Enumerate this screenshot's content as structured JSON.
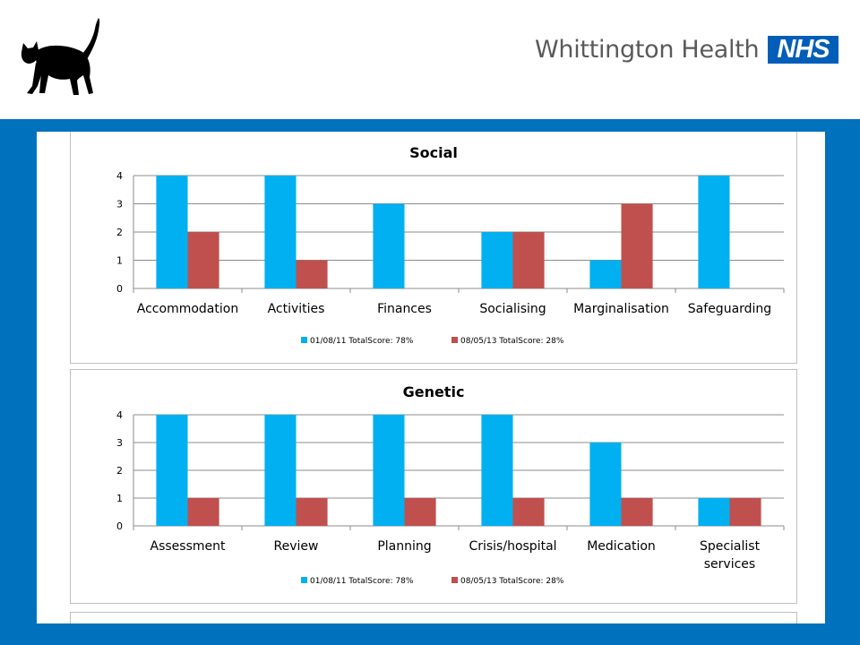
{
  "header": {
    "brand_name": "Whittington Health",
    "nhs_mark": "NHS",
    "logo_icon": "black-cat-icon"
  },
  "colors": {
    "series_1": "#00b0f0",
    "series_2": "#c0504d",
    "band": "#0071bc",
    "nhs_blue": "#005eb8"
  },
  "chart_data": [
    {
      "type": "bar",
      "title": "Social",
      "categories": [
        "Accommodation",
        "Activities",
        "Finances",
        "Socialising",
        "Marginalisation",
        "Safeguarding"
      ],
      "series": [
        {
          "name": "01/08/11 TotalScore: 78%",
          "values": [
            4,
            4,
            3,
            2,
            1,
            4
          ]
        },
        {
          "name": "08/05/13 TotalScore: 28%",
          "values": [
            2,
            1,
            0,
            2,
            3,
            0
          ]
        }
      ],
      "ylim": [
        0,
        4
      ],
      "yticks": [
        0,
        1,
        2,
        3,
        4
      ],
      "grid": true,
      "legend": "bottom"
    },
    {
      "type": "bar",
      "title": "Genetic",
      "categories": [
        "Assessment",
        "Review",
        "Planning",
        "Crisis/hospital",
        "Medication",
        "Specialist services"
      ],
      "series": [
        {
          "name": "01/08/11 TotalScore: 78%",
          "values": [
            4,
            4,
            4,
            4,
            3,
            1
          ]
        },
        {
          "name": "08/05/13 TotalScore: 28%",
          "values": [
            1,
            1,
            1,
            1,
            1,
            1
          ]
        }
      ],
      "ylim": [
        0,
        4
      ],
      "yticks": [
        0,
        1,
        2,
        3,
        4
      ],
      "grid": true,
      "legend": "bottom"
    }
  ]
}
